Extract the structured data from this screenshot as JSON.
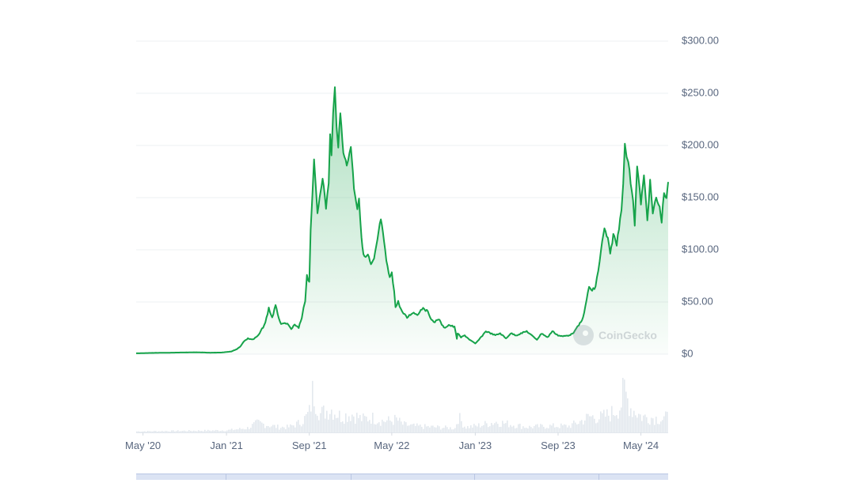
{
  "chart_data": {
    "type": "area",
    "x_tick_labels": [
      "May '20",
      "Jan '21",
      "Sep '21",
      "May '22",
      "Jan '23",
      "Sep '23",
      "May '24"
    ],
    "y_tick_labels": [
      "$0",
      "$50.00",
      "$100.00",
      "$150.00",
      "$200.00",
      "$250.00",
      "$300.00"
    ],
    "ylim": [
      0,
      300
    ],
    "xlim": [
      "2020-04-11",
      "2024-07-20"
    ],
    "grid": true,
    "series": [
      {
        "x": [
          "2020-04-11",
          "2020-06-01",
          "2020-08-15",
          "2020-10-01",
          "2020-11-15",
          "2020-12-15",
          "2021-01-15",
          "2021-02-01",
          "2021-02-10",
          "2021-02-20",
          "2021-03-05",
          "2021-03-20",
          "2021-04-05",
          "2021-04-15",
          "2021-04-25",
          "2021-05-05",
          "2021-05-15",
          "2021-05-25",
          "2021-06-10",
          "2021-06-25",
          "2021-07-10",
          "2021-07-20",
          "2021-08-01",
          "2021-08-10",
          "2021-08-15",
          "2021-08-20",
          "2021-08-25",
          "2021-09-01",
          "2021-09-05",
          "2021-09-10",
          "2021-09-15",
          "2021-09-20",
          "2021-09-25",
          "2021-10-01",
          "2021-10-10",
          "2021-10-20",
          "2021-10-28",
          "2021-11-01",
          "2021-11-05",
          "2021-11-10",
          "2021-11-15",
          "2021-11-20",
          "2021-11-25",
          "2021-12-01",
          "2021-12-10",
          "2021-12-20",
          "2022-01-01",
          "2022-01-10",
          "2022-01-20",
          "2022-01-25",
          "2022-02-01",
          "2022-02-10",
          "2022-02-20",
          "2022-03-01",
          "2022-03-10",
          "2022-03-20",
          "2022-03-30",
          "2022-04-05",
          "2022-04-15",
          "2022-04-25",
          "2022-05-01",
          "2022-05-08",
          "2022-05-12",
          "2022-05-20",
          "2022-06-01",
          "2022-06-15",
          "2022-07-01",
          "2022-07-15",
          "2022-08-01",
          "2022-08-15",
          "2022-09-01",
          "2022-09-15",
          "2022-10-01",
          "2022-10-15",
          "2022-11-01",
          "2022-11-08",
          "2022-11-10",
          "2022-11-20",
          "2022-12-01",
          "2022-12-15",
          "2023-01-01",
          "2023-01-15",
          "2023-02-01",
          "2023-02-15",
          "2023-03-01",
          "2023-03-15",
          "2023-04-01",
          "2023-04-15",
          "2023-05-01",
          "2023-06-01",
          "2023-06-15",
          "2023-07-01",
          "2023-07-15",
          "2023-08-01",
          "2023-08-15",
          "2023-09-01",
          "2023-09-15",
          "2023-10-01",
          "2023-10-10",
          "2023-10-20",
          "2023-11-01",
          "2023-11-10",
          "2023-11-20",
          "2023-12-01",
          "2023-12-10",
          "2023-12-20",
          "2023-12-28",
          "2024-01-05",
          "2024-01-15",
          "2024-01-25",
          "2024-02-01",
          "2024-02-10",
          "2024-02-20",
          "2024-03-01",
          "2024-03-05",
          "2024-03-10",
          "2024-03-15",
          "2024-03-20",
          "2024-03-25",
          "2024-04-01",
          "2024-04-08",
          "2024-04-13",
          "2024-04-20",
          "2024-05-01",
          "2024-05-10",
          "2024-05-20",
          "2024-05-28",
          "2024-06-05",
          "2024-06-15",
          "2024-06-25",
          "2024-07-01",
          "2024-07-08",
          "2024-07-15",
          "2024-07-20"
        ],
        "y": [
          0.8,
          1.2,
          1.5,
          1.8,
          1.4,
          1.5,
          2.5,
          5,
          7,
          12,
          15,
          14,
          18,
          24,
          30,
          44,
          35,
          46,
          28,
          30,
          24,
          28,
          25,
          35,
          45,
          52,
          75,
          70,
          120,
          150,
          185,
          160,
          135,
          150,
          170,
          140,
          165,
          210,
          190,
          230,
          255,
          220,
          200,
          230,
          195,
          180,
          200,
          160,
          140,
          150,
          110,
          92,
          95,
          85,
          90,
          110,
          130,
          115,
          90,
          72,
          80,
          60,
          45,
          50,
          40,
          35,
          40,
          38,
          45,
          40,
          30,
          34,
          25,
          28,
          26,
          15,
          20,
          16,
          18,
          14,
          10,
          15,
          22,
          20,
          18,
          20,
          15,
          20,
          18,
          22,
          18,
          14,
          20,
          16,
          22,
          18,
          17,
          18,
          19,
          22,
          28,
          32,
          45,
          65,
          60,
          65,
          80,
          100,
          120,
          110,
          95,
          115,
          105,
          130,
          140,
          165,
          200,
          190,
          185,
          165,
          148,
          125,
          180,
          145,
          170,
          130,
          165,
          135,
          150,
          140,
          128,
          155,
          150,
          165
        ]
      }
    ],
    "volume": {
      "x": [
        "2020-04-11",
        "2020-09-01",
        "2021-01-01",
        "2021-03-01",
        "2021-04-01",
        "2021-05-01",
        "2021-06-01",
        "2021-07-01",
        "2021-08-01",
        "2021-08-20",
        "2021-09-01",
        "2021-09-10",
        "2021-10-01",
        "2021-11-01",
        "2021-12-01",
        "2022-01-01",
        "2022-02-01",
        "2022-03-01",
        "2022-04-01",
        "2022-05-01",
        "2022-05-12",
        "2022-06-01",
        "2022-07-01",
        "2022-09-01",
        "2022-11-01",
        "2022-11-10",
        "2022-12-01",
        "2023-01-01",
        "2023-03-01",
        "2023-06-01",
        "2023-08-01",
        "2023-10-01",
        "2023-11-01",
        "2023-12-01",
        "2024-01-01",
        "2024-02-01",
        "2024-03-01",
        "2024-03-10",
        "2024-04-01",
        "2024-04-13",
        "2024-05-01",
        "2024-06-01",
        "2024-07-01",
        "2024-07-20"
      ],
      "v": [
        2,
        3,
        4,
        8,
        18,
        14,
        10,
        10,
        18,
        28,
        40,
        80,
        35,
        45,
        30,
        35,
        25,
        28,
        22,
        22,
        25,
        15,
        12,
        10,
        8,
        30,
        10,
        12,
        20,
        10,
        12,
        12,
        20,
        30,
        28,
        35,
        50,
        80,
        45,
        40,
        30,
        28,
        25,
        30
      ]
    }
  },
  "watermark": {
    "label": "CoinGecko"
  },
  "colors": {
    "line": "#16a34a",
    "area_top": "#16a34a",
    "grid": "#eef0f3",
    "volume": "#e3e8ee",
    "navigator": "#dbe3f3"
  }
}
